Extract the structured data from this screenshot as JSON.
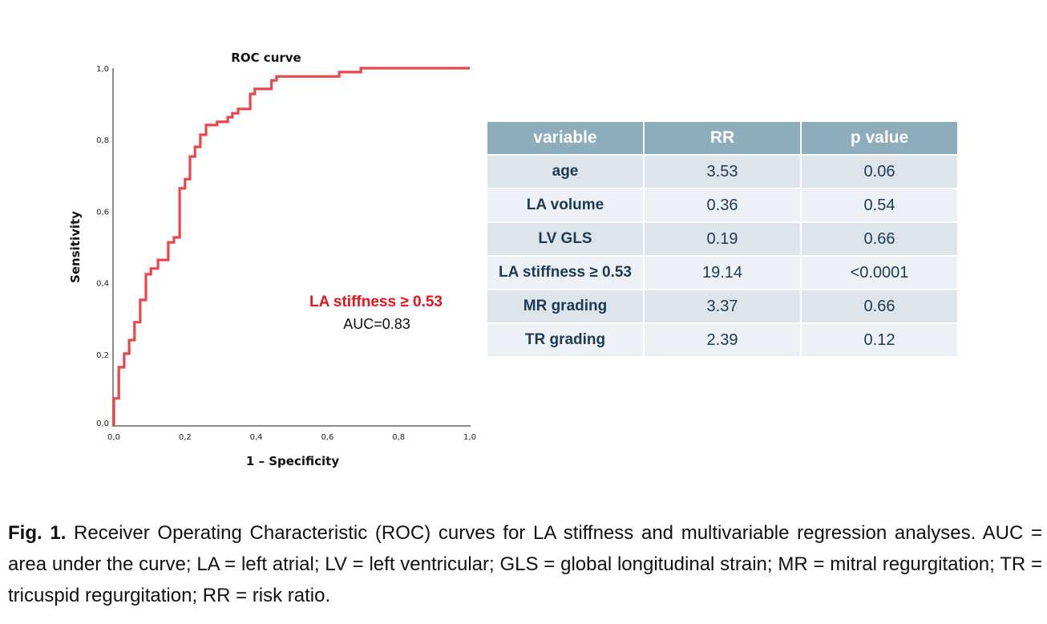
{
  "chart_data": {
    "type": "line",
    "title": "ROC curve",
    "xlabel": "1 – Specificity",
    "ylabel": "Sensitivity",
    "xlim": [
      0,
      1
    ],
    "ylim": [
      0,
      1
    ],
    "grid": false,
    "x_ticks": [
      "0,0",
      "0,2",
      "0,4",
      "0,6",
      "0,8",
      "1,0"
    ],
    "y_ticks": [
      "0,0",
      "0,2",
      "0,4",
      "0,6",
      "0,8",
      "1,0"
    ],
    "x_tick_values": [
      0,
      0.2,
      0.4,
      0.6,
      0.8,
      1.0
    ],
    "y_tick_values": [
      0,
      0.2,
      0.4,
      0.6,
      0.8,
      1.0
    ],
    "series": [
      {
        "name": "LA stiffness ≥ 0.53",
        "color": "#e8464b",
        "step": true,
        "points": [
          [
            0.0,
            0.0
          ],
          [
            0.0,
            0.077
          ],
          [
            0.014,
            0.077
          ],
          [
            0.014,
            0.164
          ],
          [
            0.029,
            0.164
          ],
          [
            0.029,
            0.202
          ],
          [
            0.043,
            0.202
          ],
          [
            0.043,
            0.24
          ],
          [
            0.058,
            0.24
          ],
          [
            0.058,
            0.29
          ],
          [
            0.074,
            0.29
          ],
          [
            0.074,
            0.352
          ],
          [
            0.09,
            0.352
          ],
          [
            0.09,
            0.424
          ],
          [
            0.104,
            0.424
          ],
          [
            0.104,
            0.44
          ],
          [
            0.124,
            0.44
          ],
          [
            0.124,
            0.464
          ],
          [
            0.153,
            0.464
          ],
          [
            0.153,
            0.513
          ],
          [
            0.169,
            0.513
          ],
          [
            0.169,
            0.527
          ],
          [
            0.185,
            0.527
          ],
          [
            0.185,
            0.664
          ],
          [
            0.2,
            0.664
          ],
          [
            0.2,
            0.69
          ],
          [
            0.214,
            0.69
          ],
          [
            0.214,
            0.753
          ],
          [
            0.228,
            0.753
          ],
          [
            0.228,
            0.78
          ],
          [
            0.243,
            0.78
          ],
          [
            0.243,
            0.814
          ],
          [
            0.259,
            0.814
          ],
          [
            0.259,
            0.841
          ],
          [
            0.29,
            0.841
          ],
          [
            0.29,
            0.85
          ],
          [
            0.32,
            0.85
          ],
          [
            0.32,
            0.863
          ],
          [
            0.333,
            0.863
          ],
          [
            0.333,
            0.874
          ],
          [
            0.349,
            0.874
          ],
          [
            0.349,
            0.886
          ],
          [
            0.383,
            0.886
          ],
          [
            0.383,
            0.928
          ],
          [
            0.396,
            0.928
          ],
          [
            0.396,
            0.942
          ],
          [
            0.443,
            0.942
          ],
          [
            0.443,
            0.966
          ],
          [
            0.457,
            0.966
          ],
          [
            0.457,
            0.977
          ],
          [
            0.633,
            0.977
          ],
          [
            0.633,
            0.989
          ],
          [
            0.694,
            0.989
          ],
          [
            0.694,
            1.0
          ],
          [
            1.0,
            1.0
          ]
        ]
      }
    ],
    "annotations": [
      {
        "text": "LA stiffness ≥ 0.53",
        "color": "#e3141c"
      },
      {
        "text": "AUC=0.83",
        "color": "#111111"
      }
    ],
    "auc": 0.83
  },
  "table": {
    "headers": [
      "variable",
      "RR",
      "p value"
    ],
    "rows": [
      {
        "variable": "age",
        "rr": "3.53",
        "p": "0.06"
      },
      {
        "variable": "LA volume",
        "rr": "0.36",
        "p": "0.54"
      },
      {
        "variable": "LV GLS",
        "rr": "0.19",
        "p": "0.66"
      },
      {
        "variable": "LA stiffness ≥ 0.53",
        "rr": "19.14",
        "p": "<0.0001"
      },
      {
        "variable": "MR grading",
        "rr": "3.37",
        "p": "0.66"
      },
      {
        "variable": "TR grading",
        "rr": "2.39",
        "p": "0.12"
      }
    ],
    "colors": {
      "header_bg": "#8eadbc",
      "row_odd_bg": "#dde5eb",
      "row_even_bg": "#edf1f5",
      "text": "#1d3a55"
    }
  },
  "caption": {
    "label": "Fig. 1.",
    "text": " Receiver Operating Characteristic (ROC) curves for LA stiffness and multivariable regression analyses. AUC = area under the curve; LA = left atrial; LV = left ventricular; GLS = global longitudinal strain; MR = mitral regurgitation; TR = tricuspid regurgitation; RR = risk ratio."
  }
}
